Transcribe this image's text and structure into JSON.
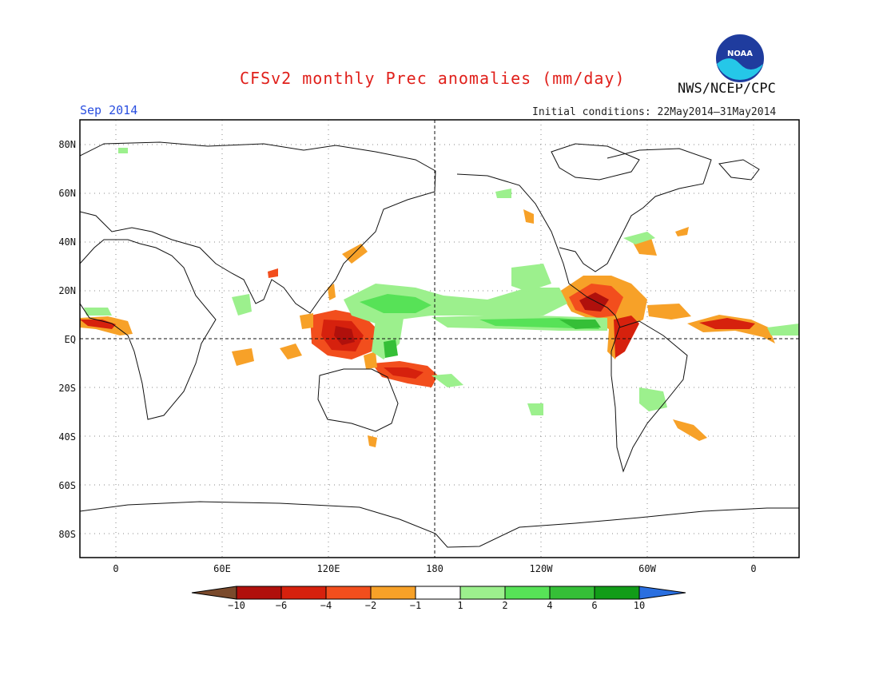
{
  "header": {
    "title": "CFSv2 monthly Prec anomalies (mm/day)",
    "agency": "NWS/NCEP/CPC",
    "month": "Sep 2014",
    "initial_conditions": "Initial conditions: 22May2014–31May2014",
    "logo_text": "NOAA"
  },
  "map": {
    "lat_labels": [
      "80N",
      "60N",
      "40N",
      "20N",
      "EQ",
      "20S",
      "40S",
      "60S",
      "80S"
    ],
    "lon_labels": [
      "0",
      "60E",
      "120E",
      "180",
      "120W",
      "60W",
      "0"
    ]
  },
  "colorbar": {
    "tick_labels": [
      "−10",
      "−6",
      "−4",
      "−2",
      "−1",
      "1",
      "2",
      "4",
      "6",
      "10"
    ],
    "colors": [
      "#7a4a2c",
      "#b0100c",
      "#d6210d",
      "#f24e1d",
      "#f7a128",
      "#ffffff",
      "#9cf08d",
      "#57e257",
      "#35bf37",
      "#119c18",
      "#2a6fe0"
    ]
  }
}
